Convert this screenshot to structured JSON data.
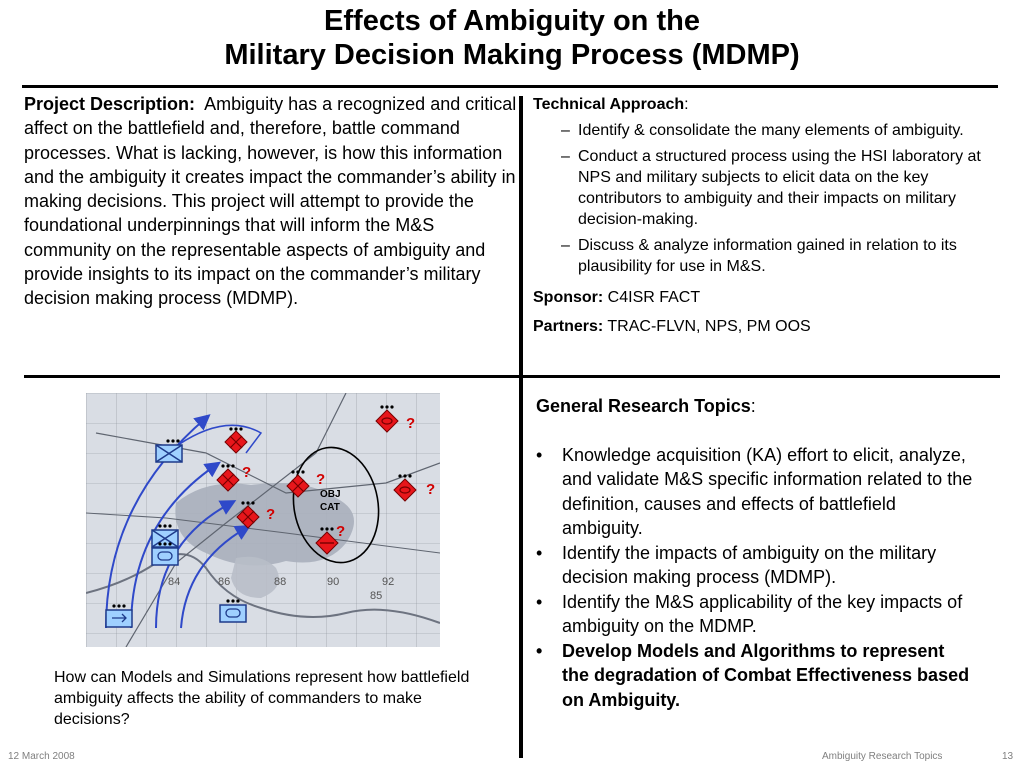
{
  "slide": {
    "title_line1": "Effects of Ambiguity on the",
    "title_line2": "Military Decision Making Process (MDMP)"
  },
  "project": {
    "label": "Project Description:",
    "text": "Ambiguity has a recognized and critical affect on the battlefield and, therefore, battle command processes.  What is lacking, however, is how this information and the ambiguity it creates impact the commander’s ability in making decisions. This project will attempt to provide the foundational underpinnings that will inform the M&S community on the representable aspects of ambiguity and provide insights to its impact on the commander’s military decision making process (MDMP)."
  },
  "technical": {
    "label": "Technical Approach",
    "colon": ":",
    "items": [
      "Identify & consolidate the many elements of ambiguity.",
      "Conduct a structured process using the HSI laboratory at NPS and military subjects to elicit data on the key contributors to ambiguity and their impacts on military decision-making.",
      "Discuss & analyze information gained in relation to its plausibility for use in M&S."
    ],
    "dash": "–",
    "sponsor_label": "Sponsor:",
    "sponsor_value": "C4ISR FACT",
    "partners_label": "Partners:",
    "partners_value": "TRAC-FLVN, NPS, PM OOS"
  },
  "map": {
    "objective_line1": "OBJ",
    "objective_line2": "CAT",
    "unknown_marker": "?",
    "grid_labels": [
      "84",
      "86",
      "88",
      "90",
      "92",
      "85"
    ],
    "colors": {
      "arrow": "#2f49c9",
      "friendly_fill": "#9fd0ff",
      "friendly_stroke": "#1e3a8a",
      "enemy_fill": "#e8161b",
      "question": "#d10000",
      "map_bg": "#d9dde4"
    }
  },
  "caption": "How can Models and Simulations represent how battlefield ambiguity affects the ability of commanders to make decisions?",
  "topics": {
    "label": "General Research Topics",
    "colon": ":",
    "bullet": "•",
    "items": [
      "Knowledge acquisition (KA) effort to elicit, analyze, and validate M&S specific information related to the definition, causes and effects of battlefield ambiguity.",
      "Identify the impacts of ambiguity on the military decision making process (MDMP).",
      "Identify the M&S applicability of the key impacts of ambiguity on the MDMP.",
      "Develop Models and Algorithms to represent the degradation of Combat Effectiveness based on Ambiguity."
    ]
  },
  "footer": {
    "date": "12 March 2008",
    "center": "Ambiguity Research Topics",
    "page": "13"
  }
}
